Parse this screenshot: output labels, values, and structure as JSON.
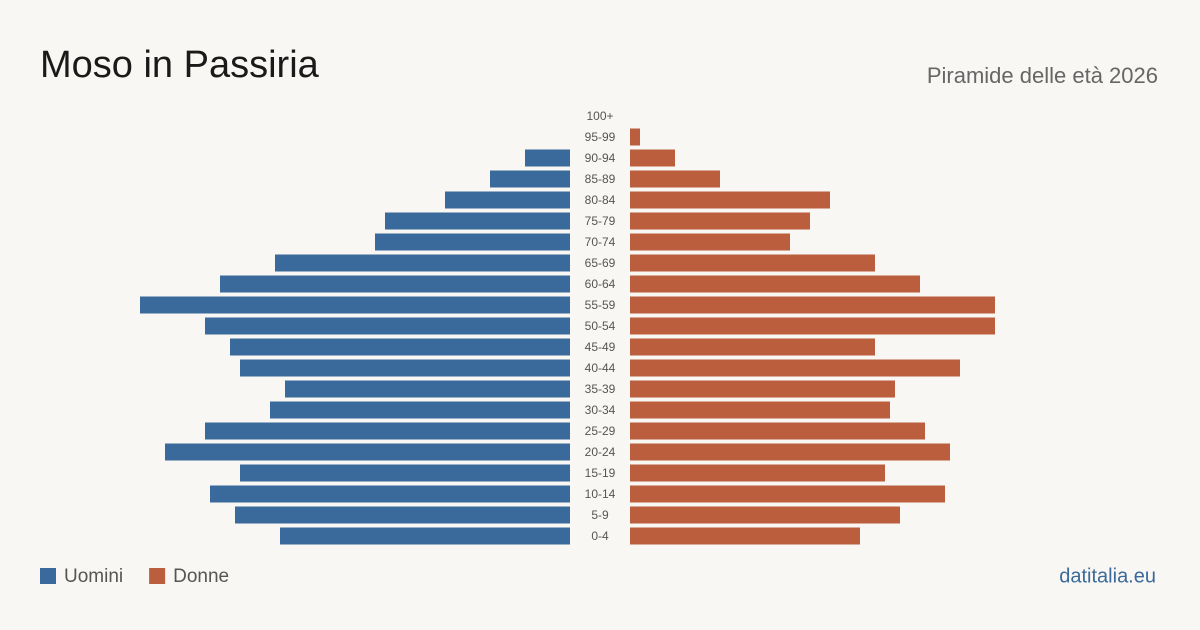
{
  "chart_data": {
    "type": "pyramid",
    "title": "Moso in Passiria",
    "subtitle": "Piramide delle età 2026",
    "source": "datitalia.eu",
    "categories": [
      "100+",
      "95-99",
      "90-94",
      "85-89",
      "80-84",
      "75-79",
      "70-74",
      "65-69",
      "60-64",
      "55-59",
      "50-54",
      "45-49",
      "40-44",
      "35-39",
      "30-34",
      "25-29",
      "20-24",
      "15-19",
      "10-14",
      "5-9",
      "0-4"
    ],
    "series": [
      {
        "name": "Uomini",
        "color": "#3a6a9b",
        "values": [
          0,
          0,
          9,
          16,
          25,
          37,
          39,
          59,
          70,
          86,
          73,
          68,
          66,
          57,
          60,
          73,
          81,
          66,
          72,
          67,
          58
        ]
      },
      {
        "name": "Donne",
        "color": "#bb5e3d",
        "values": [
          0,
          2,
          9,
          18,
          40,
          36,
          32,
          49,
          58,
          73,
          73,
          49,
          66,
          53,
          52,
          59,
          64,
          51,
          63,
          54,
          46
        ]
      }
    ]
  }
}
